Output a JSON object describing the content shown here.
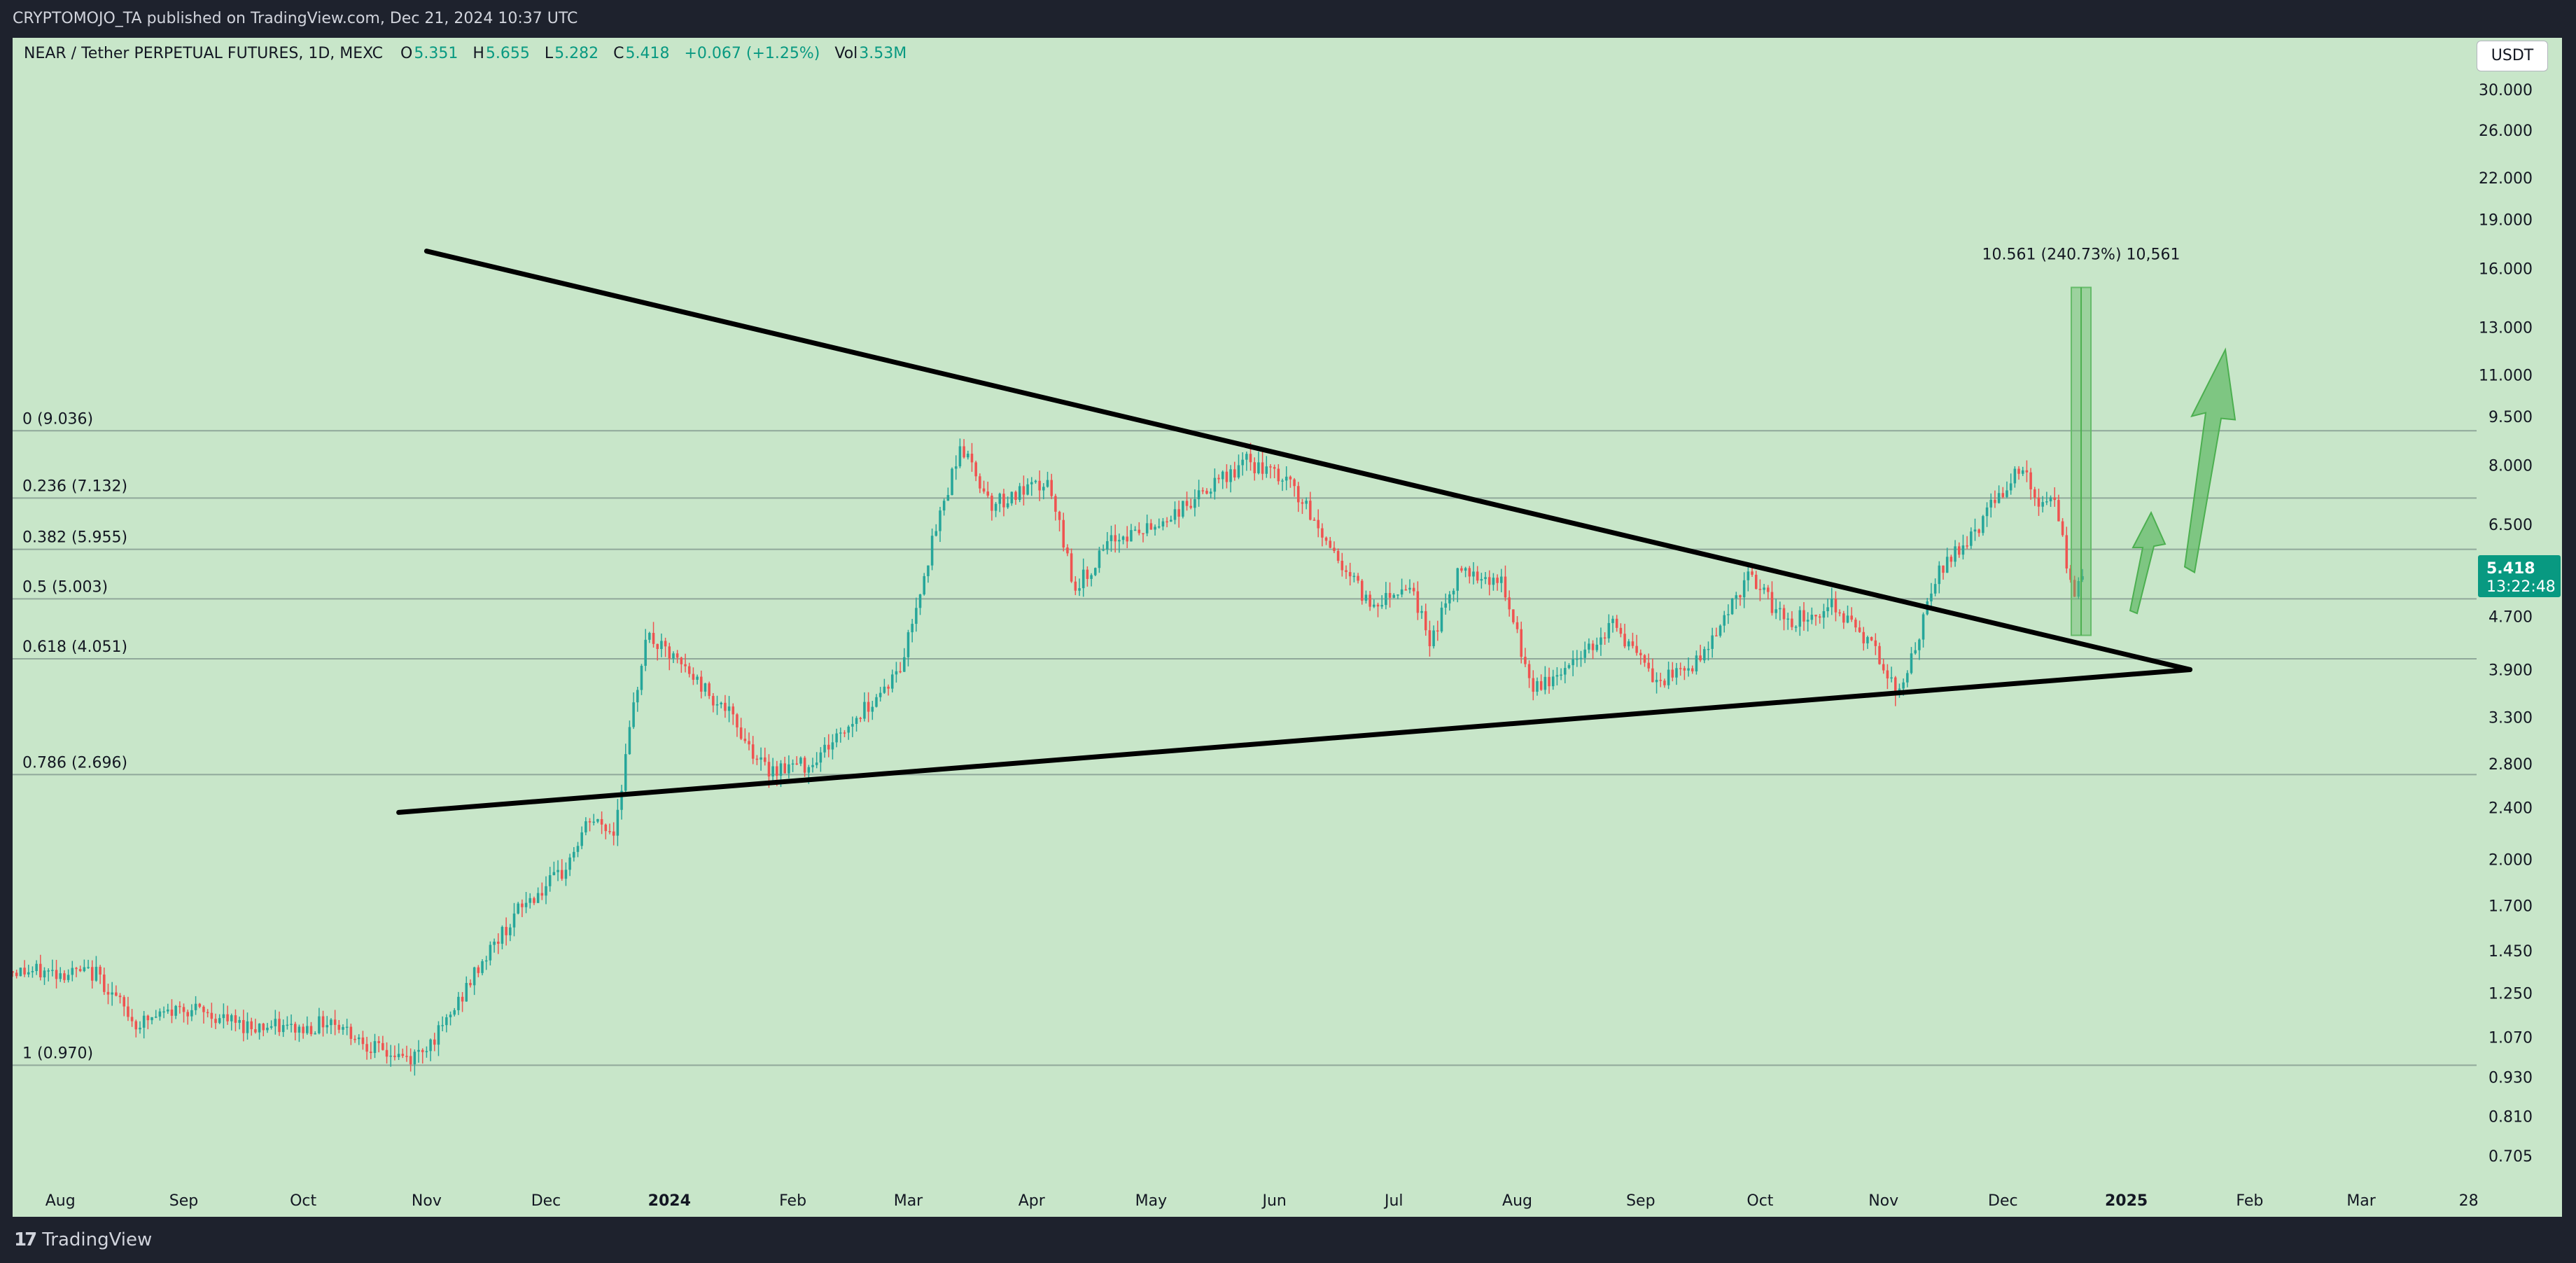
{
  "header": {
    "published_text": "CRYPTOMOJO_TA published on TradingView.com, Dec 21, 2024 10:37 UTC"
  },
  "footer": {
    "brand": "TradingView",
    "brand_icon": "tradingview-logo-icon"
  },
  "currency_button": {
    "label": "USDT"
  },
  "legend": {
    "symbol": "NEAR / Tether PERPETUAL FUTURES, 1D, MEXC",
    "open_label": "O",
    "open": "5.351",
    "high_label": "H",
    "high": "5.655",
    "low_label": "L",
    "low": "5.282",
    "close_label": "C",
    "close": "5.418",
    "change": "+0.067 (+1.25%)",
    "vol_label": "Vol",
    "vol": "3.53M"
  },
  "colors": {
    "background": "#c8e6c9",
    "up": "#26a69a",
    "down": "#ef5350",
    "projection": "#66bb6a",
    "trendline": "#000000",
    "fib": "#90a89a"
  },
  "chart_data": {
    "type": "candlestick",
    "scale": "log",
    "ylim": [
      0.65,
      36
    ],
    "y_ticks": [
      "30.000",
      "26.000",
      "22.000",
      "19.000",
      "16.000",
      "13.000",
      "11.000",
      "9.500",
      "8.000",
      "6.500",
      "4.700",
      "3.900",
      "3.300",
      "2.800",
      "2.400",
      "2.000",
      "1.700",
      "1.450",
      "1.250",
      "1.070",
      "0.930",
      "0.810",
      "0.705"
    ],
    "x_tick_labels": [
      "Aug",
      "Sep",
      "Oct",
      "Nov",
      "Dec",
      "2024",
      "Feb",
      "Mar",
      "Apr",
      "May",
      "Jun",
      "Jul",
      "Aug",
      "Sep",
      "Oct",
      "Nov",
      "Dec",
      "2025",
      "Feb",
      "Mar",
      "28"
    ],
    "x_tick_dates": [
      "2023-08-01",
      "2023-09-01",
      "2023-10-01",
      "2023-11-01",
      "2023-12-01",
      "2024-01-01",
      "2024-02-01",
      "2024-03-01",
      "2024-04-01",
      "2024-05-01",
      "2024-06-01",
      "2024-07-01",
      "2024-08-01",
      "2024-09-01",
      "2024-10-01",
      "2024-11-01",
      "2024-12-01",
      "2025-01-01",
      "2025-02-01",
      "2025-03-01",
      "2025-03-28"
    ],
    "xlim": [
      "2023-07-20",
      "2025-03-30"
    ],
    "price_anchors": [
      [
        "2023-07-20",
        1.35
      ],
      [
        "2023-08-10",
        1.34
      ],
      [
        "2023-08-20",
        1.12
      ],
      [
        "2023-09-01",
        1.19
      ],
      [
        "2023-09-15",
        1.12
      ],
      [
        "2023-10-01",
        1.1
      ],
      [
        "2023-10-08",
        1.14
      ],
      [
        "2023-10-20",
        1.02
      ],
      [
        "2023-10-28",
        0.99
      ],
      [
        "2023-11-05",
        1.1
      ],
      [
        "2023-11-15",
        1.4
      ],
      [
        "2023-11-25",
        1.7
      ],
      [
        "2023-12-05",
        1.9
      ],
      [
        "2023-12-12",
        2.3
      ],
      [
        "2023-12-18",
        2.2
      ],
      [
        "2023-12-26",
        4.4
      ],
      [
        "2024-01-05",
        3.9
      ],
      [
        "2024-01-15",
        3.4
      ],
      [
        "2024-01-25",
        2.75
      ],
      [
        "2024-02-05",
        2.8
      ],
      [
        "2024-02-15",
        3.2
      ],
      [
        "2024-02-28",
        3.9
      ],
      [
        "2024-03-05",
        5.5
      ],
      [
        "2024-03-14",
        8.6
      ],
      [
        "2024-03-22",
        7.0
      ],
      [
        "2024-04-05",
        7.5
      ],
      [
        "2024-04-12",
        5.2
      ],
      [
        "2024-04-22",
        6.2
      ],
      [
        "2024-05-01",
        6.4
      ],
      [
        "2024-05-15",
        7.3
      ],
      [
        "2024-05-25",
        8.1
      ],
      [
        "2024-06-05",
        7.5
      ],
      [
        "2024-06-15",
        6.0
      ],
      [
        "2024-06-25",
        4.9
      ],
      [
        "2024-07-05",
        5.3
      ],
      [
        "2024-07-10",
        4.3
      ],
      [
        "2024-07-18",
        5.6
      ],
      [
        "2024-07-28",
        5.3
      ],
      [
        "2024-08-05",
        3.6
      ],
      [
        "2024-08-15",
        4.0
      ],
      [
        "2024-08-25",
        4.6
      ],
      [
        "2024-09-05",
        3.7
      ],
      [
        "2024-09-15",
        4.0
      ],
      [
        "2024-09-28",
        5.4
      ],
      [
        "2024-10-08",
        4.6
      ],
      [
        "2024-10-20",
        4.9
      ],
      [
        "2024-11-01",
        4.0
      ],
      [
        "2024-11-05",
        3.55
      ],
      [
        "2024-11-15",
        5.5
      ],
      [
        "2024-11-25",
        6.5
      ],
      [
        "2024-12-05",
        8.0
      ],
      [
        "2024-12-10",
        7.0
      ],
      [
        "2024-12-14",
        7.0
      ],
      [
        "2024-12-19",
        5.0
      ],
      [
        "2024-12-21",
        5.418
      ]
    ],
    "fibonacci_levels": [
      {
        "label": "0 (9.036)",
        "value": 9.036
      },
      {
        "label": "0.236 (7.132)",
        "value": 7.132
      },
      {
        "label": "0.382 (5.955)",
        "value": 5.955
      },
      {
        "label": "0.5 (5.003)",
        "value": 5.003
      },
      {
        "label": "0.618 (4.051)",
        "value": 4.051
      },
      {
        "label": "0.786 (2.696)",
        "value": 2.696
      },
      {
        "label": "1 (0.970)",
        "value": 0.97
      }
    ],
    "trendlines": [
      {
        "name": "descending-resistance",
        "from": [
          "2023-11-01",
          17.0
        ],
        "to": [
          "2025-01-17",
          3.9
        ]
      },
      {
        "name": "ascending-support",
        "from": [
          "2023-10-25",
          2.36
        ],
        "to": [
          "2025-01-17",
          3.9
        ]
      }
    ],
    "measure": {
      "label": "10.561 (240.73%) 10,561",
      "date": "2024-12-21",
      "from_value": 4.4,
      "to_value": 14.961
    },
    "current_price": {
      "value": "5.418",
      "countdown": "13:22:48"
    }
  }
}
